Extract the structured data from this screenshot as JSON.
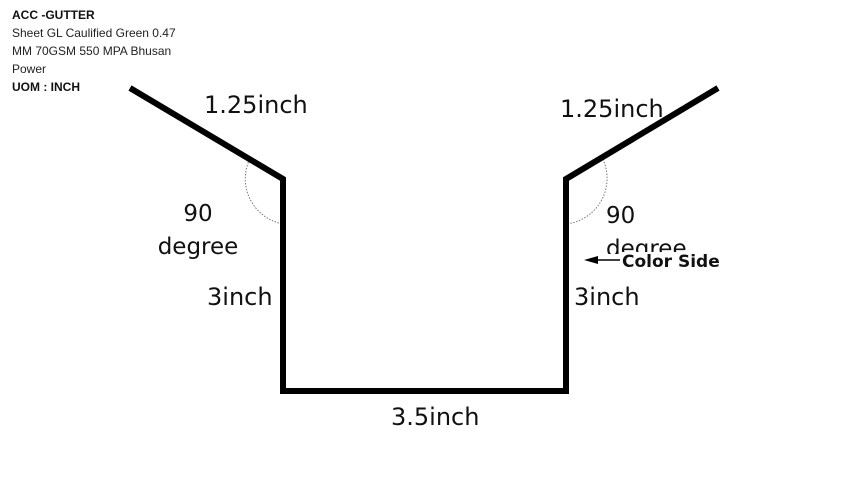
{
  "spec": {
    "title": "ACC -GUTTER",
    "material_lines": [
      "Sheet GL Caulified Green 0.47",
      "MM 70GSM 550 MPA Bhusan",
      "Power"
    ],
    "uom": "UOM : INCH"
  },
  "dimensions": {
    "left_flange": "1.25inch",
    "right_flange": "1.25inch",
    "left_side": "3inch",
    "right_side": "3inch",
    "bottom": "3.5inch"
  },
  "angles": {
    "left": [
      "90",
      "degree"
    ],
    "right": [
      "90",
      "degree"
    ]
  },
  "color_side_label": "Color Side",
  "colors": {
    "profile_line": "#000000",
    "angle_arc": "#777777"
  }
}
